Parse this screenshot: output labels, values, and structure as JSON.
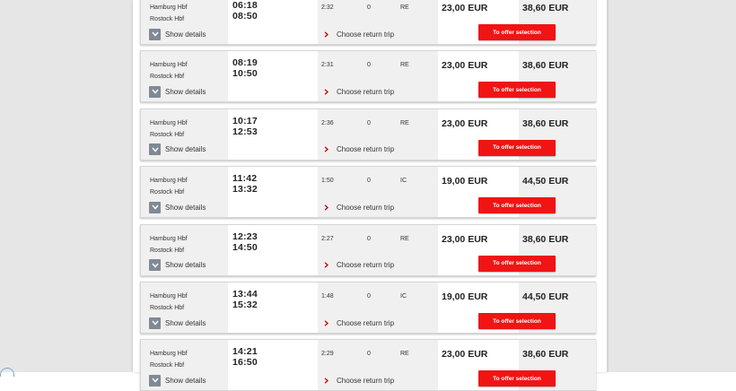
{
  "labels": {
    "show_details": "Show details",
    "choose_return": "Choose return trip",
    "offer_button": "To offer selection"
  },
  "connections": [
    {
      "from": "Hamburg Hbf",
      "to": "Rostock Hbf",
      "dep": "06:18",
      "arr": "08:50",
      "duration": "2:32",
      "changes": "0",
      "product": "RE",
      "price1": "23,00 EUR",
      "price2": "38,60 EUR"
    },
    {
      "from": "Hamburg Hbf",
      "to": "Rostock Hbf",
      "dep": "08:19",
      "arr": "10:50",
      "duration": "2:31",
      "changes": "0",
      "product": "RE",
      "price1": "23,00 EUR",
      "price2": "38,60 EUR"
    },
    {
      "from": "Hamburg Hbf",
      "to": "Rostock Hbf",
      "dep": "10:17",
      "arr": "12:53",
      "duration": "2:36",
      "changes": "0",
      "product": "RE",
      "price1": "23,00 EUR",
      "price2": "38,60 EUR"
    },
    {
      "from": "Hamburg Hbf",
      "to": "Rostock Hbf",
      "dep": "11:42",
      "arr": "13:32",
      "duration": "1:50",
      "changes": "0",
      "product": "IC",
      "price1": "19,00 EUR",
      "price2": "44,50 EUR"
    },
    {
      "from": "Hamburg Hbf",
      "to": "Rostock Hbf",
      "dep": "12:23",
      "arr": "14:50",
      "duration": "2:27",
      "changes": "0",
      "product": "RE",
      "price1": "23,00 EUR",
      "price2": "38,60 EUR"
    },
    {
      "from": "Hamburg Hbf",
      "to": "Rostock Hbf",
      "dep": "13:44",
      "arr": "15:32",
      "duration": "1:48",
      "changes": "0",
      "product": "IC",
      "price1": "19,00 EUR",
      "price2": "44,50 EUR"
    },
    {
      "from": "Hamburg Hbf",
      "to": "Rostock Hbf",
      "dep": "14:21",
      "arr": "16:50",
      "duration": "2:29",
      "changes": "0",
      "product": "RE",
      "price1": "23,00 EUR",
      "price2": "38,60 EUR"
    }
  ],
  "colors": {
    "accent_red": "#f01414",
    "chevron_box": "#7f8a95",
    "cell_gray": "#f0f0f0",
    "page_bg": "#e6e6e6"
  },
  "icons": {
    "details_toggle": "chevron-down-icon",
    "return_trip": "chevron-right-icon"
  }
}
